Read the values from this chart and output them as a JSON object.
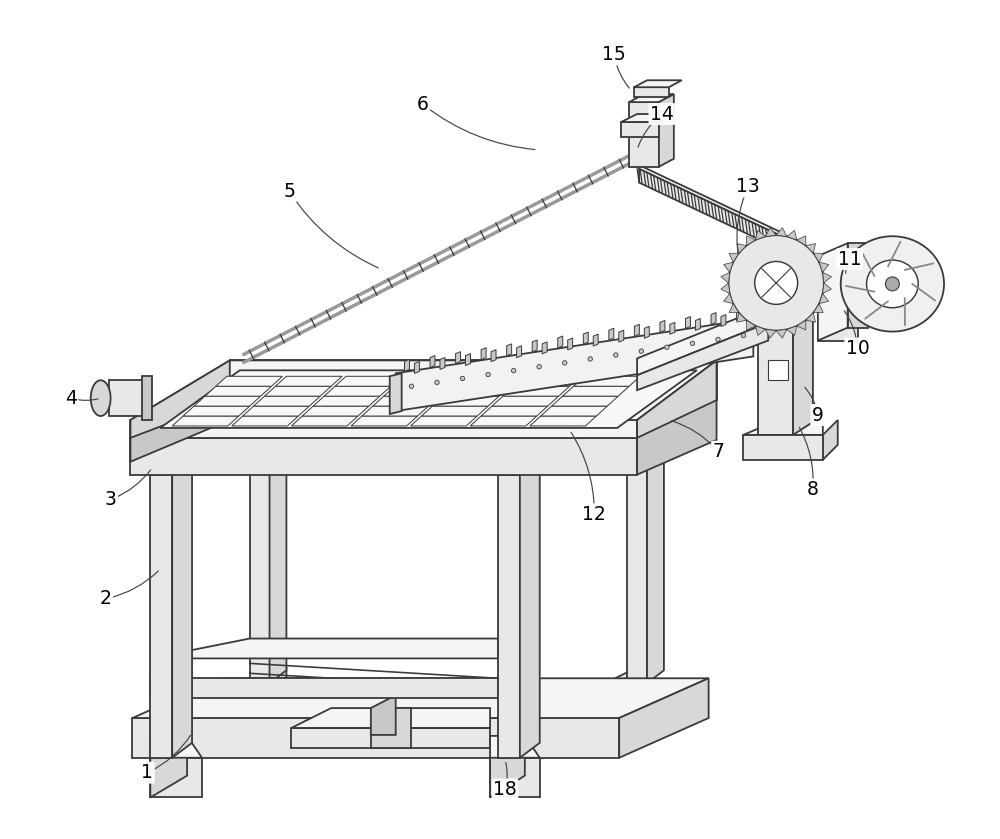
{
  "bg_color": "#ffffff",
  "lc": "#3a3a3a",
  "lw": 1.3,
  "face_light": "#f5f5f5",
  "face_mid": "#e8e8e8",
  "face_dark": "#d8d8d8",
  "face_darker": "#c8c8c8",
  "labels": [
    [
      "1",
      145,
      775,
      190,
      735
    ],
    [
      "2",
      103,
      600,
      158,
      570
    ],
    [
      "3",
      108,
      500,
      150,
      468
    ],
    [
      "4",
      68,
      398,
      98,
      398
    ],
    [
      "5",
      288,
      190,
      380,
      268
    ],
    [
      "6",
      422,
      102,
      538,
      148
    ],
    [
      "7",
      720,
      452,
      670,
      420
    ],
    [
      "8",
      815,
      490,
      800,
      425
    ],
    [
      "9",
      820,
      415,
      805,
      385
    ],
    [
      "10",
      860,
      348,
      845,
      308
    ],
    [
      "11",
      852,
      258,
      848,
      275
    ],
    [
      "12",
      595,
      515,
      570,
      430
    ],
    [
      "13",
      750,
      185,
      740,
      255
    ],
    [
      "14",
      663,
      112,
      638,
      148
    ],
    [
      "15",
      615,
      52,
      632,
      88
    ],
    [
      "18",
      505,
      792,
      505,
      762
    ]
  ]
}
